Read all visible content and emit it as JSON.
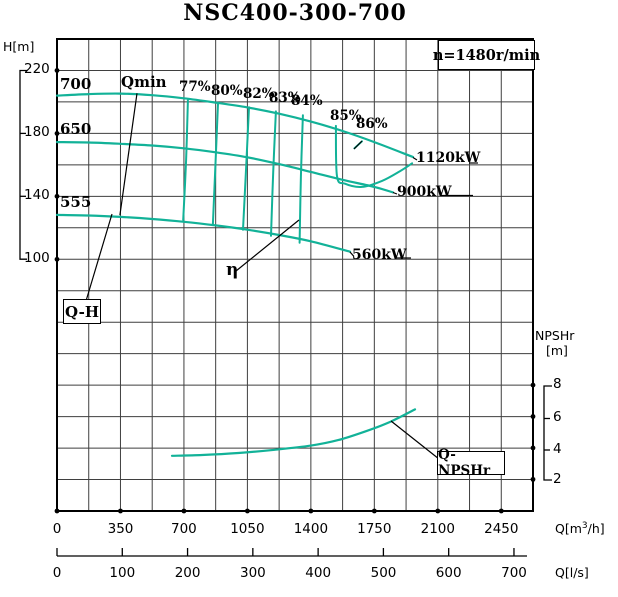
{
  "title": "NSC400-300-700",
  "header": {
    "speed": "n=1480r/min"
  },
  "axes": {
    "head": {
      "unit": "H[m]",
      "ticks": [
        "220",
        "180",
        "140",
        "100"
      ]
    },
    "npshr": {
      "name": "NPSHr",
      "unit": "[m]",
      "ticks": [
        "8",
        "6",
        "4",
        "2"
      ]
    },
    "q_m3h": {
      "unit_prefix": "Q[m",
      "unit_sup": "3",
      "unit_suffix": "/h]",
      "ticks": [
        "0",
        "350",
        "700",
        "1050",
        "1400",
        "1750",
        "2100",
        "2450"
      ]
    },
    "q_ls": {
      "unit": "Q[l/s]",
      "ticks": [
        "0",
        "100",
        "200",
        "300",
        "400",
        "500",
        "600",
        "700"
      ]
    }
  },
  "labels": {
    "impellers": [
      "700",
      "650",
      "555"
    ],
    "qmin": "Qmin",
    "eta": "η",
    "qh_box": "Q-H",
    "qnpshr_box": "Q-NPSHr",
    "powers": [
      "1120kW",
      "900kW",
      "560kW"
    ],
    "efficiencies": [
      "77%",
      "80%",
      "82%",
      "83%",
      "84%",
      "85%",
      "86%"
    ]
  },
  "colors": {
    "curve": "#12b298",
    "grid": "#3f3f3f",
    "ink": "#000000"
  },
  "chart_data": {
    "type": "line",
    "title": "NSC400-300-700",
    "speed_rpm": 1480,
    "x_axis": {
      "label": "Q[m3/h]",
      "ticks": [
        0,
        350,
        700,
        1050,
        1400,
        1750,
        2100,
        2450
      ],
      "range": [
        0,
        2625
      ],
      "grid": true
    },
    "x_axis_secondary": {
      "label": "Q[l/s]",
      "ticks": [
        0,
        100,
        200,
        300,
        400,
        500,
        600,
        700
      ]
    },
    "y_axis_head": {
      "label": "H[m]",
      "ticks": [
        220,
        180,
        140,
        100
      ],
      "top_value": 240
    },
    "y_axis_npshr": {
      "label": "NPSHr [m]",
      "ticks": [
        8,
        6,
        4,
        2
      ]
    },
    "qh_curves": [
      {
        "impeller": "700",
        "power_label": "1120kW",
        "points": [
          [
            0,
            204
          ],
          [
            175,
            205
          ],
          [
            350,
            205.3
          ],
          [
            525,
            204.3
          ],
          [
            700,
            202.3
          ],
          [
            875,
            199.6
          ],
          [
            1050,
            196.5
          ],
          [
            1225,
            192.5
          ],
          [
            1400,
            187.5
          ],
          [
            1575,
            181.5
          ],
          [
            1750,
            174.5
          ],
          [
            1963,
            165
          ]
        ]
      },
      {
        "impeller": "650",
        "power_label": "900kW",
        "points": [
          [
            0,
            174.5
          ],
          [
            175,
            174.2
          ],
          [
            350,
            173.4
          ],
          [
            525,
            172.3
          ],
          [
            700,
            170.5
          ],
          [
            875,
            168
          ],
          [
            1050,
            164.8
          ],
          [
            1225,
            160.5
          ],
          [
            1400,
            155.5
          ],
          [
            1575,
            150.5
          ],
          [
            1750,
            146
          ],
          [
            1853,
            142.5
          ]
        ]
      },
      {
        "impeller": "555",
        "power_label": "560kW",
        "points": [
          [
            0,
            128.2
          ],
          [
            175,
            127.8
          ],
          [
            350,
            126.9
          ],
          [
            525,
            125.6
          ],
          [
            700,
            123.8
          ],
          [
            875,
            121.5
          ],
          [
            1050,
            118.8
          ],
          [
            1225,
            115.4
          ],
          [
            1400,
            111.4
          ],
          [
            1616,
            104.8
          ]
        ]
      }
    ],
    "efficiency_contours": [
      {
        "label": "77%",
        "points": [
          [
            722,
            201
          ],
          [
            712,
            163
          ],
          [
            696,
            125
          ]
        ]
      },
      {
        "label": "80%",
        "points": [
          [
            888,
            199
          ],
          [
            874,
            161
          ],
          [
            860,
            122.5
          ]
        ]
      },
      {
        "label": "82%",
        "points": [
          [
            1059,
            196.6
          ],
          [
            1043,
            158
          ],
          [
            1026,
            118.8
          ]
        ]
      },
      {
        "label": "83%",
        "points": [
          [
            1207,
            194
          ],
          [
            1192,
            155.3
          ],
          [
            1180,
            114.9
          ]
        ]
      },
      {
        "label": "84%",
        "points": [
          [
            1356,
            191.5
          ],
          [
            1345,
            152.5
          ],
          [
            1338,
            110.5
          ]
        ]
      },
      {
        "label": "85%",
        "points": [
          [
            1538,
            184.8
          ],
          [
            1544,
            152.8
          ],
          [
            1588,
            148
          ],
          [
            1682,
            146
          ],
          [
            1792,
            149.8
          ],
          [
            1891,
            156
          ],
          [
            1958,
            161
          ]
        ]
      },
      {
        "label": "86%",
        "points": [
          [
            1682,
            175
          ],
          [
            1640,
            170.5
          ]
        ]
      }
    ],
    "npshr_curve": {
      "points": [
        [
          634,
          3.5
        ],
        [
          800,
          3.55
        ],
        [
          1000,
          3.68
        ],
        [
          1200,
          3.88
        ],
        [
          1400,
          4.15
        ],
        [
          1550,
          4.5
        ],
        [
          1700,
          5.05
        ],
        [
          1836,
          5.65
        ],
        [
          1974,
          6.45
        ]
      ]
    },
    "qmin_line": {
      "points": [
        [
          441,
          205.5
        ],
        [
          347,
          128
        ]
      ]
    }
  }
}
